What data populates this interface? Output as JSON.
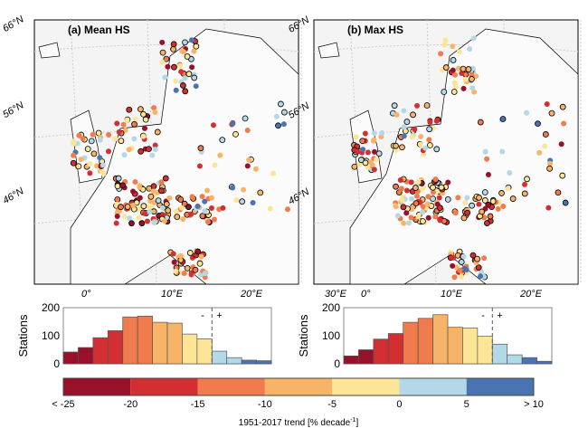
{
  "colors": [
    "#99102b",
    "#d32f32",
    "#f07c4e",
    "#f7b468",
    "#fde598",
    "#b3d8e8",
    "#4a74b1"
  ],
  "maps": [
    {
      "title": "(a) Mean HS"
    },
    {
      "title": "(b) Max HS"
    }
  ],
  "map_axes": {
    "lat_labels": [
      "66°N",
      "56°N",
      "46°N"
    ],
    "lon_labels": [
      "0°",
      "10°E",
      "20°E",
      "30°E"
    ]
  },
  "chart_data": [
    {
      "type": "bar",
      "title": "",
      "ylabel": "Stations",
      "ylim": [
        0,
        200
      ],
      "yticks": [
        "0",
        "100",
        "200"
      ],
      "bin_edges": [
        -30,
        -27.5,
        -25,
        -22.5,
        -20,
        -17.5,
        -15,
        -12.5,
        -10,
        -7.5,
        -5,
        -2.5,
        0,
        2.5,
        5
      ],
      "values": [
        42,
        58,
        93,
        118,
        167,
        170,
        148,
        145,
        106,
        89,
        45,
        22,
        13,
        11
      ],
      "color_index": [
        0,
        0,
        1,
        1,
        2,
        2,
        3,
        3,
        4,
        4,
        5,
        5,
        6,
        6
      ],
      "annotations": [
        "-",
        "+"
      ]
    },
    {
      "type": "bar",
      "title": "",
      "ylabel": "Stations",
      "ylim": [
        0,
        200
      ],
      "yticks": [
        "0",
        "100",
        "200"
      ],
      "values": [
        28,
        50,
        88,
        108,
        148,
        162,
        175,
        130,
        128,
        98,
        70,
        32,
        22,
        9
      ],
      "color_index": [
        0,
        0,
        1,
        1,
        2,
        2,
        3,
        3,
        4,
        4,
        5,
        5,
        6,
        6
      ],
      "annotations": [
        "-",
        "+"
      ]
    }
  ],
  "colorbar": {
    "tick_labels": [
      "< -25",
      "-20",
      "-15",
      "-10",
      "-5",
      "0",
      "5",
      "> 10"
    ],
    "label": "1951-2017 trend [% decade",
    "label_exp": "-1",
    "label_end": "]"
  }
}
